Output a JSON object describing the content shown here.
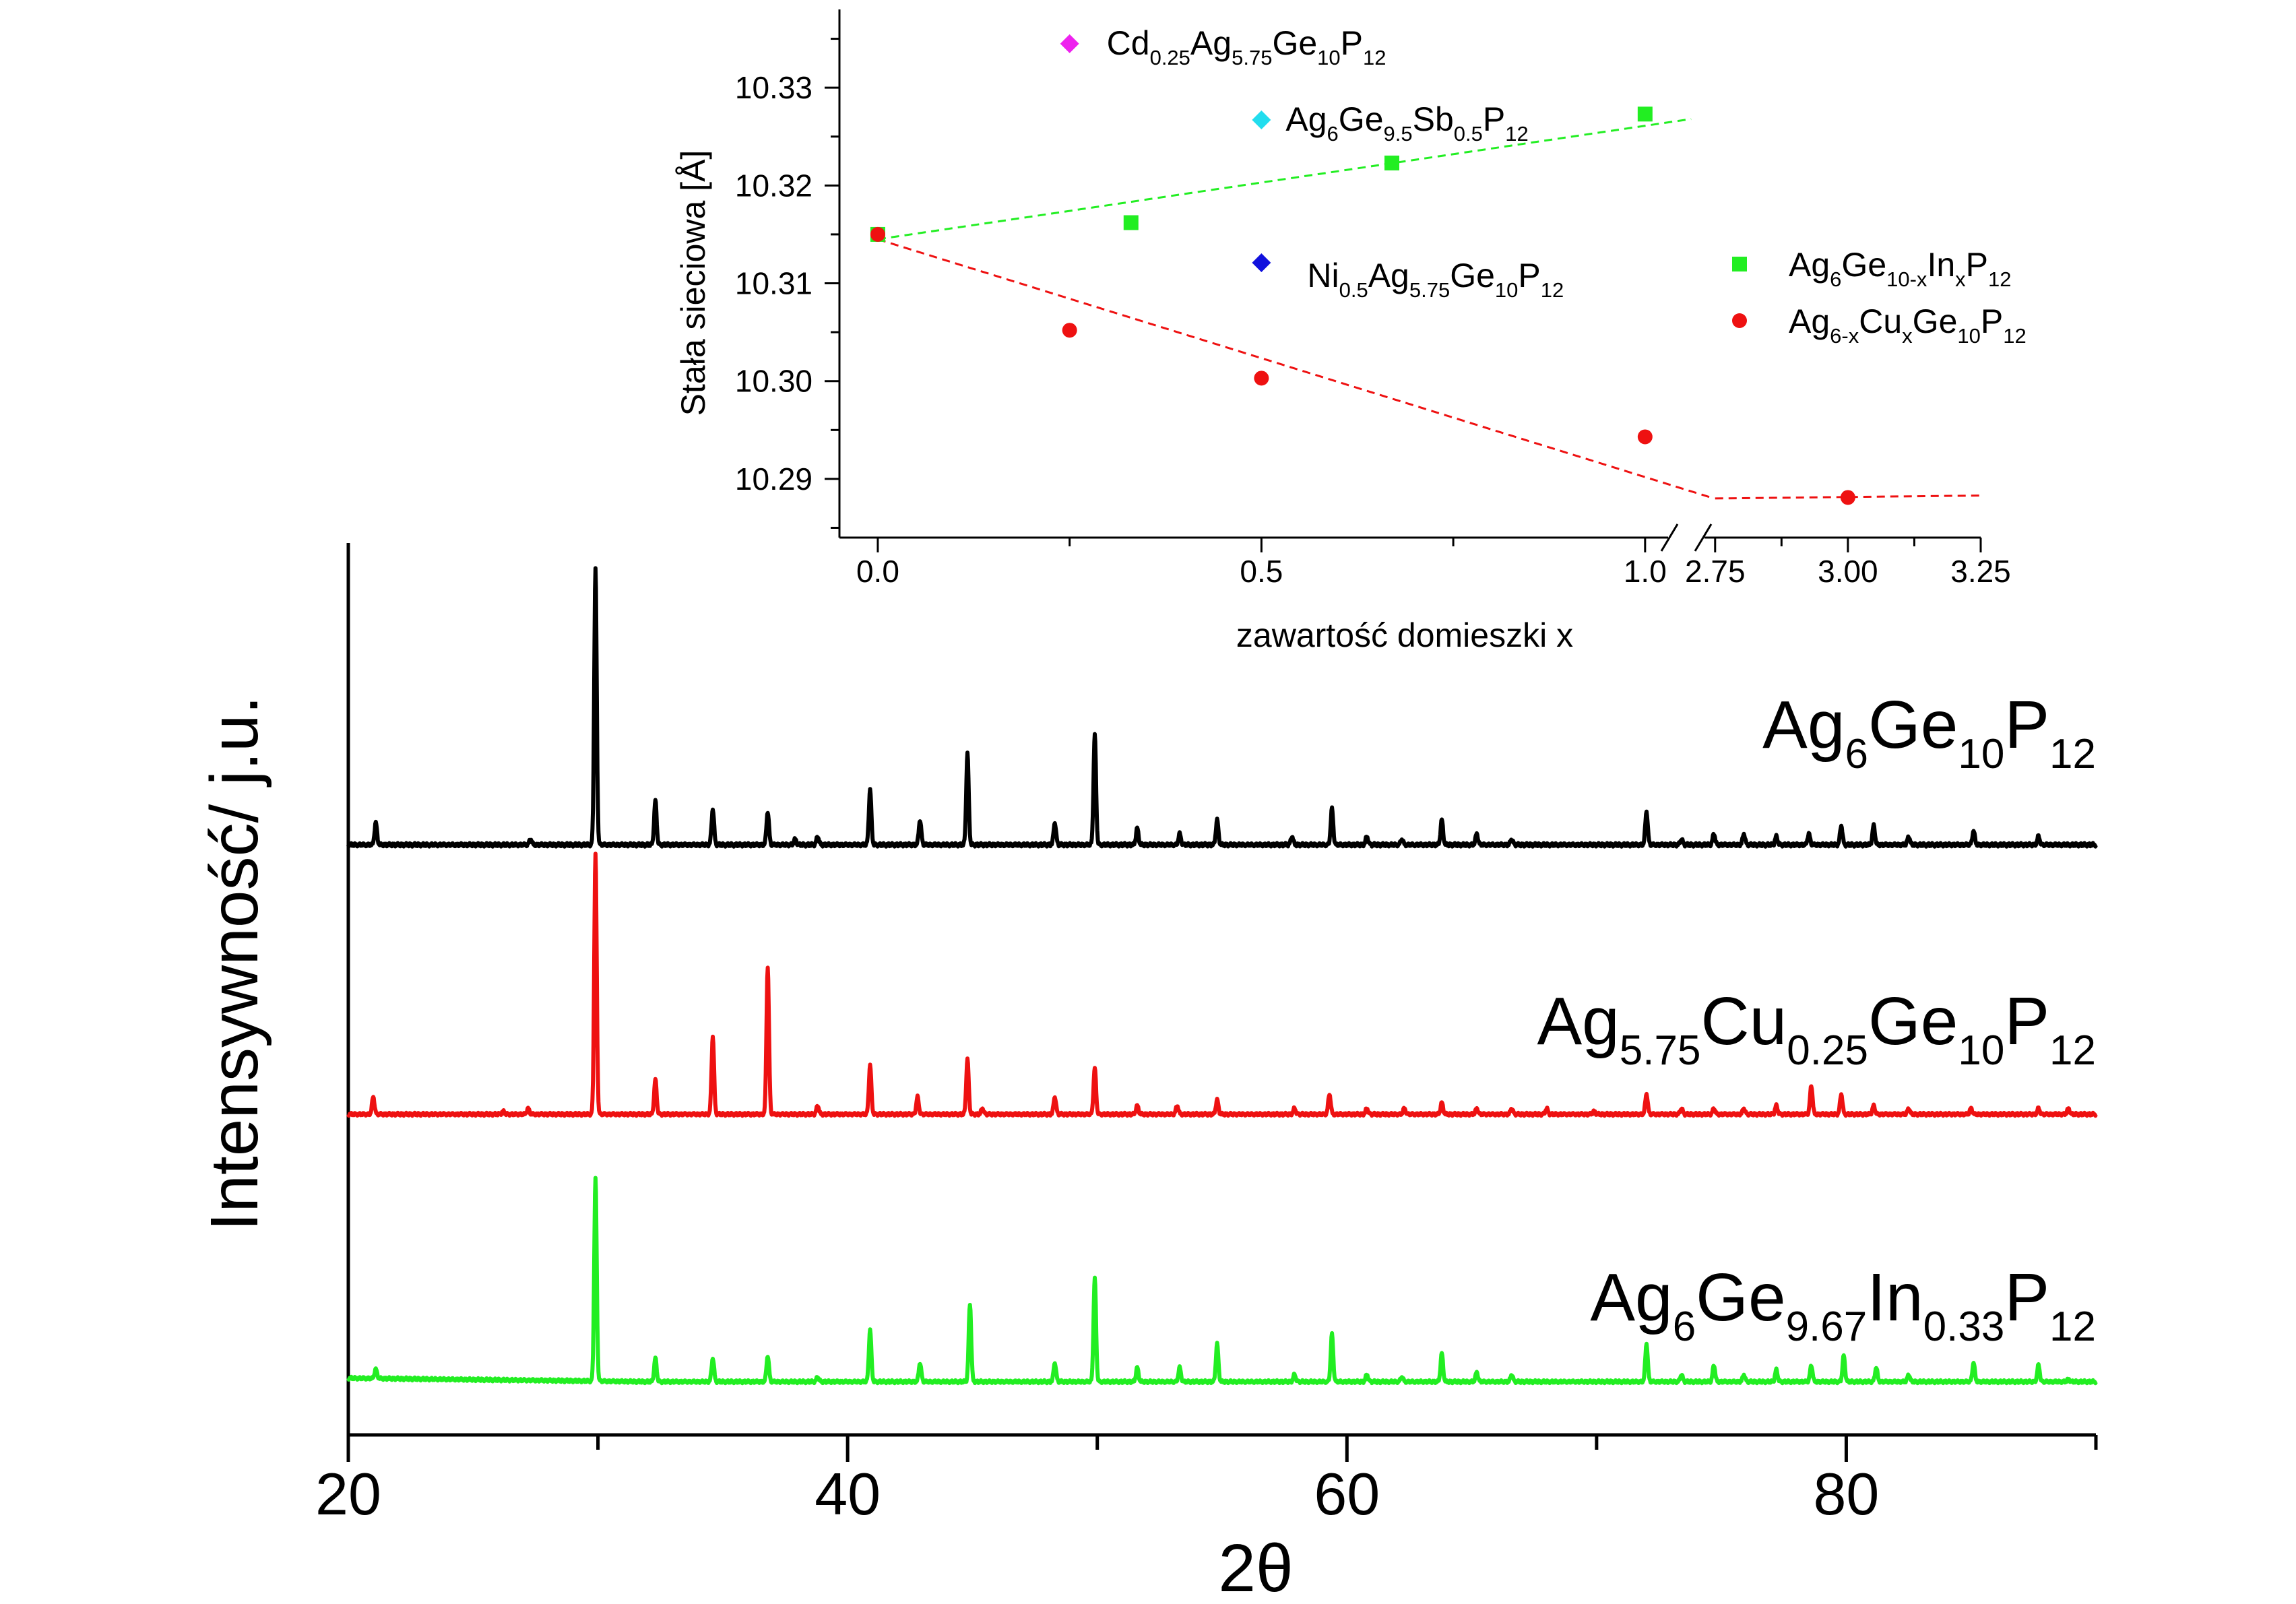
{
  "chart_data": [
    {
      "type": "line",
      "xlabel": "2θ",
      "ylabel": "Intensywność/ j.u.",
      "xlim": [
        20,
        90
      ],
      "x_ticks": [
        20,
        40,
        60,
        80
      ],
      "x_tick_labels": [
        "20",
        "40",
        "60",
        "80"
      ],
      "grid": false,
      "y_tick_labels_shown": false,
      "series": [
        {
          "name": "Ag6Ge10P12",
          "label": {
            "segments": [
              {
                "t": "Ag"
              },
              {
                "t": "6",
                "sub": true
              },
              {
                "t": "Ge"
              },
              {
                "t": "10",
                "sub": true
              },
              {
                "t": "P"
              },
              {
                "t": "12",
                "sub": true
              }
            ]
          },
          "color": "#000000",
          "baseline": 0.0,
          "peaks": [
            {
              "x": 21.1,
              "h": 0.08
            },
            {
              "x": 27.3,
              "h": 0.02
            },
            {
              "x": 29.9,
              "h": 1.0
            },
            {
              "x": 32.3,
              "h": 0.16
            },
            {
              "x": 34.6,
              "h": 0.13
            },
            {
              "x": 36.8,
              "h": 0.12
            },
            {
              "x": 37.9,
              "h": 0.02
            },
            {
              "x": 38.8,
              "h": 0.03
            },
            {
              "x": 40.9,
              "h": 0.2
            },
            {
              "x": 42.9,
              "h": 0.09
            },
            {
              "x": 44.8,
              "h": 0.33
            },
            {
              "x": 48.3,
              "h": 0.08
            },
            {
              "x": 49.9,
              "h": 0.4
            },
            {
              "x": 51.6,
              "h": 0.06
            },
            {
              "x": 53.3,
              "h": 0.04
            },
            {
              "x": 54.8,
              "h": 0.09
            },
            {
              "x": 57.8,
              "h": 0.03
            },
            {
              "x": 59.4,
              "h": 0.13
            },
            {
              "x": 60.8,
              "h": 0.03
            },
            {
              "x": 62.2,
              "h": 0.02
            },
            {
              "x": 63.8,
              "h": 0.09
            },
            {
              "x": 65.2,
              "h": 0.04
            },
            {
              "x": 66.6,
              "h": 0.02
            },
            {
              "x": 72.0,
              "h": 0.12
            },
            {
              "x": 73.4,
              "h": 0.02
            },
            {
              "x": 74.7,
              "h": 0.04
            },
            {
              "x": 75.9,
              "h": 0.04
            },
            {
              "x": 77.2,
              "h": 0.03
            },
            {
              "x": 78.5,
              "h": 0.04
            },
            {
              "x": 79.8,
              "h": 0.07
            },
            {
              "x": 81.1,
              "h": 0.07
            },
            {
              "x": 82.5,
              "h": 0.03
            },
            {
              "x": 85.1,
              "h": 0.05
            },
            {
              "x": 87.7,
              "h": 0.03
            }
          ]
        },
        {
          "name": "Ag5.75Cu0.25Ge10P12",
          "label": {
            "segments": [
              {
                "t": "Ag"
              },
              {
                "t": "5.75",
                "sub": true
              },
              {
                "t": "Cu"
              },
              {
                "t": "0.25",
                "sub": true
              },
              {
                "t": "Ge"
              },
              {
                "t": "10",
                "sub": true
              },
              {
                "t": "P"
              },
              {
                "t": "12",
                "sub": true
              }
            ]
          },
          "color": "#ee1111",
          "baseline": 0.0,
          "peaks": [
            {
              "x": 21.0,
              "h": 0.06
            },
            {
              "x": 26.2,
              "h": 0.01
            },
            {
              "x": 27.2,
              "h": 0.02
            },
            {
              "x": 29.9,
              "h": 0.9
            },
            {
              "x": 32.3,
              "h": 0.12
            },
            {
              "x": 34.6,
              "h": 0.27
            },
            {
              "x": 36.8,
              "h": 0.51
            },
            {
              "x": 38.8,
              "h": 0.03
            },
            {
              "x": 40.9,
              "h": 0.17
            },
            {
              "x": 42.8,
              "h": 0.06
            },
            {
              "x": 44.8,
              "h": 0.19
            },
            {
              "x": 45.4,
              "h": 0.02
            },
            {
              "x": 48.3,
              "h": 0.06
            },
            {
              "x": 49.9,
              "h": 0.16
            },
            {
              "x": 51.6,
              "h": 0.03
            },
            {
              "x": 53.2,
              "h": 0.03
            },
            {
              "x": 54.8,
              "h": 0.05
            },
            {
              "x": 57.9,
              "h": 0.02
            },
            {
              "x": 59.3,
              "h": 0.07
            },
            {
              "x": 60.8,
              "h": 0.02
            },
            {
              "x": 62.3,
              "h": 0.02
            },
            {
              "x": 63.8,
              "h": 0.04
            },
            {
              "x": 65.2,
              "h": 0.02
            },
            {
              "x": 66.6,
              "h": 0.02
            },
            {
              "x": 68.0,
              "h": 0.02
            },
            {
              "x": 69.9,
              "h": 0.01
            },
            {
              "x": 72.0,
              "h": 0.07
            },
            {
              "x": 73.4,
              "h": 0.02
            },
            {
              "x": 74.7,
              "h": 0.02
            },
            {
              "x": 75.9,
              "h": 0.02
            },
            {
              "x": 77.2,
              "h": 0.03
            },
            {
              "x": 78.6,
              "h": 0.1
            },
            {
              "x": 79.8,
              "h": 0.07
            },
            {
              "x": 81.1,
              "h": 0.03
            },
            {
              "x": 82.5,
              "h": 0.02
            },
            {
              "x": 85.0,
              "h": 0.02
            },
            {
              "x": 87.7,
              "h": 0.02
            },
            {
              "x": 88.9,
              "h": 0.02
            }
          ]
        },
        {
          "name": "Ag6Ge9.67In0.33P12",
          "label": {
            "segments": [
              {
                "t": "Ag"
              },
              {
                "t": "6",
                "sub": true
              },
              {
                "t": "Ge"
              },
              {
                "t": "9.67",
                "sub": true
              },
              {
                "t": "In"
              },
              {
                "t": "0.33",
                "sub": true
              },
              {
                "t": "P"
              },
              {
                "t": "12",
                "sub": true
              }
            ]
          },
          "color": "#22ee22",
          "baseline": 0.015,
          "peaks": [
            {
              "x": 21.1,
              "h": 0.04
            },
            {
              "x": 29.9,
              "h": 0.86
            },
            {
              "x": 32.3,
              "h": 0.1
            },
            {
              "x": 34.6,
              "h": 0.1
            },
            {
              "x": 36.8,
              "h": 0.11
            },
            {
              "x": 38.8,
              "h": 0.02
            },
            {
              "x": 40.9,
              "h": 0.22
            },
            {
              "x": 42.9,
              "h": 0.08
            },
            {
              "x": 44.9,
              "h": 0.33
            },
            {
              "x": 48.3,
              "h": 0.08
            },
            {
              "x": 49.9,
              "h": 0.44
            },
            {
              "x": 51.6,
              "h": 0.06
            },
            {
              "x": 53.3,
              "h": 0.06
            },
            {
              "x": 54.8,
              "h": 0.16
            },
            {
              "x": 57.9,
              "h": 0.03
            },
            {
              "x": 59.4,
              "h": 0.2
            },
            {
              "x": 60.8,
              "h": 0.03
            },
            {
              "x": 62.2,
              "h": 0.02
            },
            {
              "x": 63.8,
              "h": 0.12
            },
            {
              "x": 65.2,
              "h": 0.04
            },
            {
              "x": 66.6,
              "h": 0.03
            },
            {
              "x": 72.0,
              "h": 0.16
            },
            {
              "x": 73.4,
              "h": 0.03
            },
            {
              "x": 74.7,
              "h": 0.07
            },
            {
              "x": 75.9,
              "h": 0.03
            },
            {
              "x": 77.2,
              "h": 0.05
            },
            {
              "x": 78.6,
              "h": 0.07
            },
            {
              "x": 79.9,
              "h": 0.11
            },
            {
              "x": 81.2,
              "h": 0.06
            },
            {
              "x": 82.5,
              "h": 0.03
            },
            {
              "x": 85.1,
              "h": 0.08
            },
            {
              "x": 87.7,
              "h": 0.07
            },
            {
              "x": 88.9,
              "h": 0.01
            }
          ]
        }
      ]
    },
    {
      "type": "scatter",
      "xlabel": "zawartość domieszki x",
      "ylabel": "Stała sieciowa [Å]",
      "ylim": [
        10.284,
        10.338
      ],
      "y_ticks": [
        10.29,
        10.3,
        10.31,
        10.32,
        10.33
      ],
      "y_tick_labels": [
        "10.29",
        "10.30",
        "10.31",
        "10.32",
        "10.33"
      ],
      "x_axis_broken": true,
      "x_segments": [
        {
          "xlim": [
            -0.05,
            1.03
          ],
          "ticks": [
            0.0,
            0.5,
            1.0
          ],
          "tick_labels": [
            "0.0",
            "0.5",
            "1.0"
          ]
        },
        {
          "xlim": [
            2.73,
            3.25
          ],
          "ticks": [
            2.75,
            3.0,
            3.25
          ],
          "tick_labels": [
            "2.75",
            "3.00",
            "3.25"
          ]
        }
      ],
      "grid": false,
      "series": [
        {
          "name": "Ag6Ge10-xInxP12",
          "legend": {
            "segments": [
              {
                "t": "Ag"
              },
              {
                "t": "6",
                "sub": true
              },
              {
                "t": "Ge"
              },
              {
                "t": "10-x",
                "sub": true
              },
              {
                "t": "In"
              },
              {
                "t": "x",
                "sub": true
              },
              {
                "t": "P"
              },
              {
                "t": "12",
                "sub": true
              }
            ]
          },
          "marker": "square",
          "color": "#22ee22",
          "points": [
            {
              "x": 0.0,
              "y": 10.315
            },
            {
              "x": 0.33,
              "y": 10.3162
            },
            {
              "x": 0.67,
              "y": 10.3223
            },
            {
              "x": 1.0,
              "y": 10.3273
            }
          ],
          "trend": [
            {
              "x": 0.0,
              "y": 10.3145
            },
            {
              "x": 1.06,
              "y": 10.3268
            }
          ]
        },
        {
          "name": "Ag6-xCuxGe10P12",
          "legend": {
            "segments": [
              {
                "t": "Ag"
              },
              {
                "t": "6-x",
                "sub": true
              },
              {
                "t": "Cu"
              },
              {
                "t": "x",
                "sub": true
              },
              {
                "t": "Ge"
              },
              {
                "t": "10",
                "sub": true
              },
              {
                "t": "P"
              },
              {
                "t": "12",
                "sub": true
              }
            ]
          },
          "marker": "circle",
          "color": "#ee1111",
          "points": [
            {
              "x": 0.0,
              "y": 10.315
            },
            {
              "x": 0.25,
              "y": 10.3052
            },
            {
              "x": 0.5,
              "y": 10.3003
            },
            {
              "x": 1.0,
              "y": 10.2943
            },
            {
              "x": 3.0,
              "y": 10.2881
            }
          ],
          "trend": [
            {
              "x": 0.0,
              "y": 10.3145
            },
            {
              "x": 1.09,
              "y": 10.288
            },
            {
              "x": 2.75,
              "y": 10.288
            },
            {
              "x": 3.25,
              "y": 10.2883
            }
          ]
        }
      ],
      "single_points": [
        {
          "name": "Cd0.25Ag5.75Ge10P12",
          "label": {
            "segments": [
              {
                "t": "Cd"
              },
              {
                "t": "0.25",
                "sub": true
              },
              {
                "t": "Ag"
              },
              {
                "t": "5.75",
                "sub": true
              },
              {
                "t": "Ge"
              },
              {
                "t": "10",
                "sub": true
              },
              {
                "t": "P"
              },
              {
                "t": "12",
                "sub": true
              }
            ]
          },
          "marker": "diamond",
          "color": "#ee22ee",
          "x": 0.25,
          "y": 10.3345
        },
        {
          "name": "Ag6Ge9.5Sb0.5P12",
          "label": {
            "segments": [
              {
                "t": "Ag"
              },
              {
                "t": "6",
                "sub": true
              },
              {
                "t": "Ge"
              },
              {
                "t": "9.5",
                "sub": true
              },
              {
                "t": "Sb"
              },
              {
                "t": "0.5",
                "sub": true
              },
              {
                "t": "P"
              },
              {
                "t": "12",
                "sub": true
              }
            ]
          },
          "marker": "diamond",
          "color": "#22ddee",
          "x": 0.5,
          "y": 10.3267
        },
        {
          "name": "Ni0.5Ag5.75Ge10P12",
          "label": {
            "segments": [
              {
                "t": "Ni"
              },
              {
                "t": "0.5",
                "sub": true
              },
              {
                "t": "Ag"
              },
              {
                "t": "5.75",
                "sub": true
              },
              {
                "t": "Ge"
              },
              {
                "t": "10",
                "sub": true
              },
              {
                "t": "P"
              },
              {
                "t": "12",
                "sub": true
              }
            ]
          },
          "marker": "diamond",
          "color": "#1111dd",
          "x": 0.5,
          "y": 10.3121
        }
      ]
    }
  ]
}
